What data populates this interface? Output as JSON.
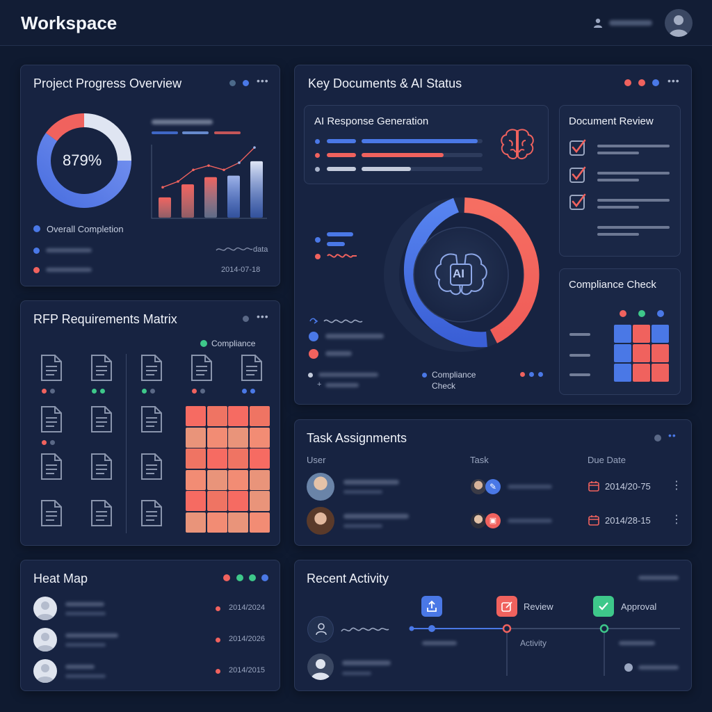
{
  "app": {
    "title": "Workspace"
  },
  "colors": {
    "accent_blue": "#4a78e6",
    "accent_red": "#f0625e",
    "accent_green": "#3ec88a",
    "background": "#0f1a30",
    "card": "#172341"
  },
  "project_progress": {
    "title": "Project Progress Overview",
    "percent_label": "879%",
    "legend_label": "Overall Completion",
    "date_label": "2014-07-18",
    "data_label": "data",
    "bars": [
      0.28,
      0.46,
      0.56,
      0.58,
      0.78
    ],
    "trend": [
      0.42,
      0.5,
      0.66,
      0.72,
      0.66,
      0.76,
      0.97
    ]
  },
  "key_documents": {
    "title": "Key Documents & AI Status",
    "ai_response": {
      "title": "AI Response Generation",
      "progress": [
        0.96,
        0.68,
        0.41
      ]
    },
    "center_label": "AI",
    "ring_label": "Compliance Check",
    "document_review": {
      "title": "Document Review"
    },
    "compliance_check": {
      "title": "Compliance Check"
    }
  },
  "rfp_matrix": {
    "title": "RFP Requirements Matrix",
    "legend_label": "Compliance"
  },
  "task_assignments": {
    "title": "Task Assignments",
    "columns": [
      "User",
      "Task",
      "Due Date"
    ],
    "rows": [
      {
        "due_date": "2014/20-75"
      },
      {
        "due_date": "2014/28-15"
      }
    ]
  },
  "heat_map": {
    "title": "Heat Map",
    "rows": [
      {
        "date": "2014/2024"
      },
      {
        "date": "2014/2026"
      },
      {
        "date": "2014/2015"
      }
    ]
  },
  "recent_activity": {
    "title": "Recent Activity",
    "steps": [
      {
        "label": ""
      },
      {
        "label": "Review",
        "sublabel": "Activity"
      },
      {
        "label": "Approval"
      }
    ]
  }
}
